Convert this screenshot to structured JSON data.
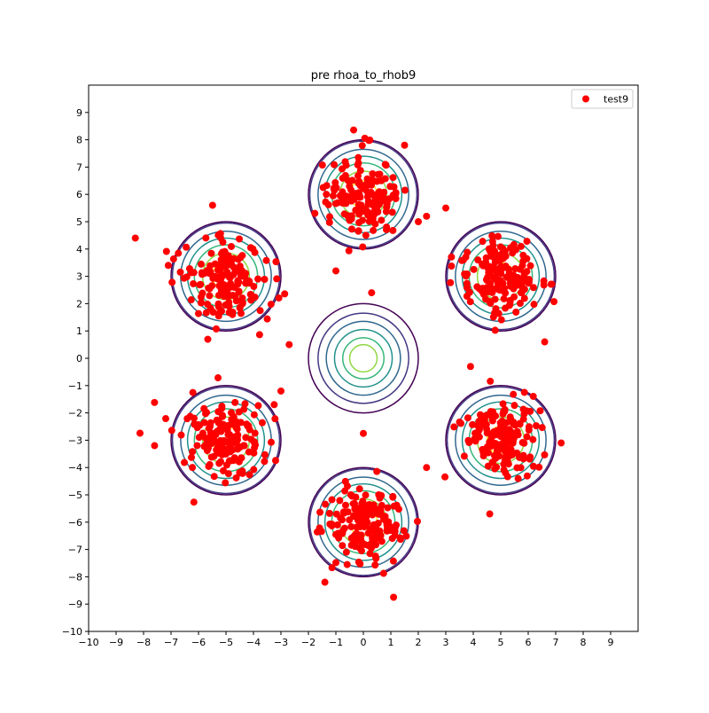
{
  "chart_data": {
    "type": "scatter",
    "title": "pre rhoa_to_rhob9",
    "xlabel": "",
    "ylabel": "",
    "xlim": [
      -10,
      10
    ],
    "ylim": [
      -10,
      10
    ],
    "x_ticks": [
      -10,
      -9,
      -8,
      -7,
      -6,
      -5,
      -4,
      -3,
      -2,
      -1,
      0,
      1,
      2,
      3,
      4,
      5,
      6,
      7,
      8,
      9
    ],
    "y_ticks": [
      -10,
      -9,
      -8,
      -7,
      -6,
      -5,
      -4,
      -3,
      -2,
      -1,
      0,
      1,
      2,
      3,
      4,
      5,
      6,
      7,
      8,
      9
    ],
    "grid": false,
    "legend": {
      "position": "top-right",
      "entries": [
        "test9"
      ]
    },
    "series": [
      {
        "name": "test9",
        "color": "#ff0000",
        "marker": "circle",
        "clusters": [
          {
            "center": [
              0,
              6
            ],
            "spread": 0.9,
            "count": 160
          },
          {
            "center": [
              5,
              3
            ],
            "spread": 0.9,
            "count": 160
          },
          {
            "center": [
              5,
              -3
            ],
            "spread": 0.9,
            "count": 160
          },
          {
            "center": [
              0,
              -6
            ],
            "spread": 0.9,
            "count": 160
          },
          {
            "center": [
              -5,
              -3
            ],
            "spread": 0.9,
            "count": 160
          },
          {
            "center": [
              -5,
              3
            ],
            "spread": 0.9,
            "count": 160
          }
        ],
        "x": [
          -8.3,
          -7.6,
          -7.1,
          -2.7,
          1.1,
          1.5,
          2.3,
          -1.4,
          6.6,
          7.2,
          -1.0,
          0.3,
          2.0,
          3.0,
          0.0,
          2.3,
          -3.0,
          3.9,
          4.6
        ],
        "y": [
          4.4,
          -3.2,
          3.4,
          0.5,
          -8.75,
          7.8,
          5.2,
          -8.2,
          0.6,
          -3.1,
          3.2,
          2.4,
          5.0,
          5.5,
          -2.75,
          -4.0,
          -1.2,
          -0.3,
          -5.7
        ]
      }
    ],
    "contours": {
      "centers": [
        [
          0,
          0
        ],
        [
          0,
          6
        ],
        [
          5,
          3
        ],
        [
          5,
          -3
        ],
        [
          0,
          -6
        ],
        [
          -5,
          -3
        ],
        [
          -5,
          3
        ]
      ],
      "radii": [
        0.5,
        0.85,
        1.15,
        1.4,
        1.65,
        1.95,
        2.0
      ],
      "levels": [
        0.5,
        1.0,
        1.5,
        2.0,
        2.5,
        3.0,
        3.5
      ],
      "colors": [
        "#440154",
        "#443983",
        "#31688e",
        "#21918c",
        "#35b779",
        "#90d743",
        "#fde725"
      ]
    }
  }
}
